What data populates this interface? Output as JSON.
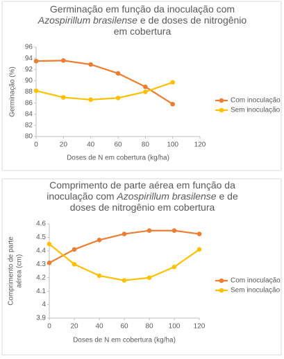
{
  "chart_data": [
    {
      "type": "line",
      "title": [
        [
          {
            "text": "Germinação em função da inoculação com"
          }
        ],
        [
          {
            "text": "Azospirillum brasilense",
            "italic": true
          },
          {
            "text": " e de doses de nitrogênio"
          }
        ],
        [
          {
            "text": "em cobertura"
          }
        ]
      ],
      "xlabel": "Doses de N em cobertura (kg/ha)",
      "ylabel": [
        "Germinação (%)"
      ],
      "x": [
        0,
        20,
        40,
        60,
        80,
        100
      ],
      "series": [
        {
          "name": "Com inoculação",
          "color": "#ed7d31",
          "values": [
            93.5,
            93.6,
            92.9,
            91.3,
            88.9,
            85.8
          ]
        },
        {
          "name": "Sem inoculação",
          "color": "#ffc000",
          "values": [
            88.2,
            87.0,
            86.6,
            86.9,
            88.0,
            89.7
          ]
        }
      ],
      "xlim": [
        0,
        120
      ],
      "xticks": [
        0,
        20,
        40,
        60,
        80,
        100,
        120
      ],
      "ylim": [
        80,
        96
      ],
      "yticks": [
        80,
        82,
        84,
        86,
        88,
        90,
        92,
        94,
        96
      ],
      "grid": false,
      "legend": "right"
    },
    {
      "type": "line",
      "title": [
        [
          {
            "text": "Comprimento de parte aérea em função da"
          }
        ],
        [
          {
            "text": "inoculação com "
          },
          {
            "text": "Azospirillum brasilense",
            "italic": true
          },
          {
            "text": " e de"
          }
        ],
        [
          {
            "text": "doses de nitrogênio em cobertura"
          }
        ]
      ],
      "xlabel": "Doses de N em cobertura (kg/ha)",
      "ylabel": [
        "Comprimento de parte",
        "aérea (cm)"
      ],
      "x": [
        0,
        20,
        40,
        60,
        80,
        100,
        120
      ],
      "series": [
        {
          "name": "Com inoculação",
          "color": "#ed7d31",
          "values": [
            4.31,
            4.41,
            4.48,
            4.525,
            4.55,
            4.55,
            4.525
          ]
        },
        {
          "name": "Sem inoculação",
          "color": "#ffc000",
          "values": [
            4.45,
            4.3,
            4.215,
            4.18,
            4.2,
            4.28,
            4.41
          ]
        }
      ],
      "xlim": [
        0,
        120
      ],
      "xticks": [
        0,
        20,
        40,
        60,
        80,
        100,
        120
      ],
      "ylim": [
        3.9,
        4.6
      ],
      "yticks": [
        3.9,
        4,
        4.1,
        4.2,
        4.3,
        4.4,
        4.5,
        4.6
      ],
      "grid": false,
      "legend": "right"
    }
  ]
}
